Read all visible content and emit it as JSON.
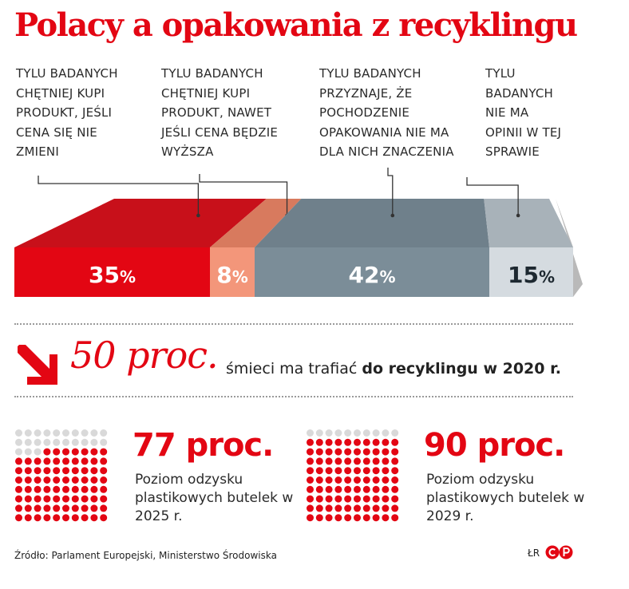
{
  "title": "Polacy a opakowania z recyklingu",
  "chart_data": {
    "type": "stacked-bar",
    "segments": [
      {
        "label": "TYLU BADANYCH CHĘTNIEJ KUPI PRODUKT, JEŚLI CENA SIĘ NIE ZMIENI",
        "value": 35,
        "display": "35%",
        "color": "#e30613",
        "top_color": "#c8101a"
      },
      {
        "label": "TYLU BADANYCH CHĘTNIEJ KUPI PRODUKT, NAWET JEŚLI CENA BĘDZIE WYŻSZA",
        "value": 8,
        "display": "8%",
        "color": "#f3967a",
        "top_color": "#d87a5e"
      },
      {
        "label": "TYLU BADANYCH PRZYZNAJE, ŻE POCHODZENIE OPAKOWANIA NIE MA DLA NICH ZNACZENIA",
        "value": 42,
        "display": "42%",
        "color": "#7b8d98",
        "top_color": "#6f808b"
      },
      {
        "label": "TYLU BADANYCH NIE MA OPINII W TEJ SPRAWIE",
        "value": 15,
        "display": "15%",
        "color": "#d5dbe0",
        "top_color": "#a8b2b9"
      }
    ]
  },
  "label_lines": [
    [
      "TYLU BADANYCH",
      "CHĘTNIEJ KUPI",
      "PRODUKT, JEŚLI",
      "CENA SIĘ NIE",
      "ZMIENI"
    ],
    [
      "TYLU BADANYCH",
      "CHĘTNIEJ KUPI",
      "PRODUKT, NAWET",
      "JEŚLI CENA BĘDZIE",
      "WYŻSZA"
    ],
    [
      "TYLU BADANYCH",
      "PRZYZNAJE, ŻE",
      "POCHODZENIE",
      "OPAKOWANIA NIE MA",
      "DLA NICH ZNACZENIA"
    ],
    [
      "TYLU",
      "BADANYCH",
      "NIE MA",
      "OPINII W TEJ",
      "SPRAWIE"
    ]
  ],
  "target": {
    "big": "50 proc.",
    "text_regular": "śmieci ma trafiać ",
    "text_bold": "do recyklingu w 2020 r."
  },
  "stats": [
    {
      "value": "77 proc.",
      "percent": 77,
      "description": "Poziom odzysku plastikowych butelek w 2025 r."
    },
    {
      "value": "90 proc.",
      "percent": 90,
      "description": "Poziom odzysku plastikowych butelek w 2029 r."
    }
  ],
  "source": "Źródło: Parlament Europejski, Ministerstwo Środowiska",
  "credit": "ŁR",
  "colors": {
    "accent": "#e30613",
    "dot_filled": "#e30613",
    "dot_empty": "#d9d9d9",
    "side_shadow": "#b9b9b9"
  }
}
